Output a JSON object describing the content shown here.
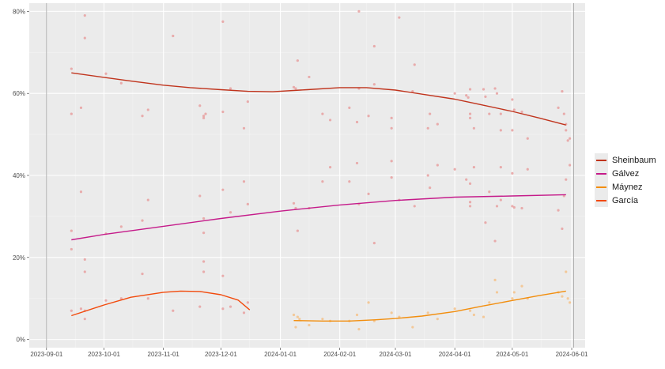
{
  "chart_data": {
    "type": "scatter",
    "title": "",
    "xlabel": "",
    "ylabel": "",
    "x_range": [
      "2023-08-23",
      "2024-06-08"
    ],
    "ylim": [
      -2,
      82
    ],
    "x_ticks": [
      {
        "date": "2023-09-01",
        "label": "2023-09-01"
      },
      {
        "date": "2023-10-01",
        "label": "2023-10-01"
      },
      {
        "date": "2023-11-01",
        "label": "2023-11-01"
      },
      {
        "date": "2023-12-01",
        "label": "2023-12-01"
      },
      {
        "date": "2024-01-01",
        "label": "2024-01-01"
      },
      {
        "date": "2024-02-01",
        "label": "2024-02-01"
      },
      {
        "date": "2024-03-01",
        "label": "2024-03-01"
      },
      {
        "date": "2024-04-01",
        "label": "2024-04-01"
      },
      {
        "date": "2024-05-01",
        "label": "2024-05-01"
      },
      {
        "date": "2024-06-01",
        "label": "2024-06-01"
      }
    ],
    "y_ticks": [
      {
        "value": 0,
        "label": "0%"
      },
      {
        "value": 20,
        "label": "20%"
      },
      {
        "value": 40,
        "label": "40%"
      },
      {
        "value": 60,
        "label": "60%"
      },
      {
        "value": 80,
        "label": "80%"
      }
    ],
    "vertical_reference_lines": [
      "2023-09-01",
      "2024-06-02"
    ],
    "grid": true,
    "legend_position": "right",
    "series": [
      {
        "name": "Sheinbaum",
        "color": "#c0341d",
        "point_color": "#e8a0a0",
        "trend": [
          [
            "2023-09-14",
            65.0
          ],
          [
            "2023-10-01",
            63.9
          ],
          [
            "2023-10-15",
            63.0
          ],
          [
            "2023-11-01",
            62.0
          ],
          [
            "2023-11-15",
            61.4
          ],
          [
            "2023-12-01",
            60.9
          ],
          [
            "2023-12-15",
            60.5
          ],
          [
            "2023-12-28",
            60.4
          ],
          [
            "2024-01-15",
            60.9
          ],
          [
            "2024-02-01",
            61.4
          ],
          [
            "2024-02-15",
            61.4
          ],
          [
            "2024-03-01",
            60.8
          ],
          [
            "2024-03-15",
            59.8
          ],
          [
            "2024-04-01",
            58.6
          ],
          [
            "2024-04-15",
            57.2
          ],
          [
            "2024-05-01",
            55.6
          ],
          [
            "2024-05-15",
            54.0
          ],
          [
            "2024-05-29",
            52.3
          ]
        ],
        "points": [
          [
            "2023-09-14",
            66.0
          ],
          [
            "2023-09-14",
            55.0
          ],
          [
            "2023-09-19",
            56.5
          ],
          [
            "2023-09-21",
            79.0
          ],
          [
            "2023-09-21",
            73.5
          ],
          [
            "2023-10-02",
            64.8
          ],
          [
            "2023-10-10",
            62.5
          ],
          [
            "2023-10-21",
            54.5
          ],
          [
            "2023-10-24",
            56.0
          ],
          [
            "2023-11-06",
            74.0
          ],
          [
            "2023-11-20",
            57.0
          ],
          [
            "2023-11-22",
            54.5
          ],
          [
            "2023-11-22",
            54.0
          ],
          [
            "2023-11-23",
            55.0
          ],
          [
            "2023-12-02",
            77.5
          ],
          [
            "2023-12-02",
            55.5
          ],
          [
            "2023-12-06",
            61.2
          ],
          [
            "2023-12-13",
            51.5
          ],
          [
            "2023-12-15",
            58.0
          ],
          [
            "2024-01-08",
            61.5
          ],
          [
            "2024-01-09",
            61.2
          ],
          [
            "2024-01-10",
            68.0
          ],
          [
            "2024-01-16",
            64.0
          ],
          [
            "2024-01-23",
            55.0
          ],
          [
            "2024-01-27",
            53.5
          ],
          [
            "2024-02-06",
            56.5
          ],
          [
            "2024-02-10",
            53.0
          ],
          [
            "2024-02-11",
            80.0
          ],
          [
            "2024-02-11",
            61.2
          ],
          [
            "2024-02-16",
            54.5
          ],
          [
            "2024-02-19",
            71.5
          ],
          [
            "2024-02-19",
            62.2
          ],
          [
            "2024-02-28",
            54.0
          ],
          [
            "2024-02-28",
            51.5
          ],
          [
            "2024-03-03",
            78.5
          ],
          [
            "2024-03-10",
            60.5
          ],
          [
            "2024-03-11",
            67.0
          ],
          [
            "2024-03-18",
            51.5
          ],
          [
            "2024-03-19",
            55.0
          ],
          [
            "2024-03-23",
            52.5
          ],
          [
            "2024-04-01",
            60.0
          ],
          [
            "2024-04-07",
            59.5
          ],
          [
            "2024-04-08",
            59.0
          ],
          [
            "2024-04-09",
            61.0
          ],
          [
            "2024-04-09",
            55.0
          ],
          [
            "2024-04-09",
            54.0
          ],
          [
            "2024-04-11",
            51.5
          ],
          [
            "2024-04-16",
            61.0
          ],
          [
            "2024-04-17",
            59.2
          ],
          [
            "2024-04-19",
            55.0
          ],
          [
            "2024-04-22",
            61.2
          ],
          [
            "2024-04-23",
            60.0
          ],
          [
            "2024-04-25",
            51.0
          ],
          [
            "2024-04-25",
            55.0
          ],
          [
            "2024-05-01",
            58.5
          ],
          [
            "2024-05-01",
            51.0
          ],
          [
            "2024-05-02",
            56.0
          ],
          [
            "2024-05-06",
            55.5
          ],
          [
            "2024-05-09",
            49.0
          ],
          [
            "2024-05-25",
            56.5
          ],
          [
            "2024-05-27",
            60.5
          ],
          [
            "2024-05-28",
            55.0
          ],
          [
            "2024-05-29",
            52.5
          ],
          [
            "2024-05-29",
            51.0
          ],
          [
            "2024-05-30",
            48.5
          ],
          [
            "2024-05-31",
            49.0
          ]
        ]
      },
      {
        "name": "Gálvez",
        "color": "#c51b8a",
        "point_color": "#e8a0a0",
        "trend": [
          [
            "2023-09-14",
            24.3
          ],
          [
            "2023-10-01",
            25.6
          ],
          [
            "2023-11-01",
            27.6
          ],
          [
            "2023-12-01",
            29.5
          ],
          [
            "2024-01-01",
            31.3
          ],
          [
            "2024-02-01",
            32.8
          ],
          [
            "2024-03-01",
            33.9
          ],
          [
            "2024-04-01",
            34.7
          ],
          [
            "2024-05-01",
            35.0
          ],
          [
            "2024-05-29",
            35.3
          ]
        ],
        "points": [
          [
            "2023-09-14",
            26.5
          ],
          [
            "2023-09-14",
            22.0
          ],
          [
            "2023-09-19",
            36.0
          ],
          [
            "2023-09-21",
            19.5
          ],
          [
            "2023-09-21",
            16.5
          ],
          [
            "2023-10-02",
            25.8
          ],
          [
            "2023-10-10",
            27.5
          ],
          [
            "2023-10-21",
            29.0
          ],
          [
            "2023-10-24",
            34.0
          ],
          [
            "2023-11-20",
            35.0
          ],
          [
            "2023-11-22",
            26.0
          ],
          [
            "2023-11-22",
            29.5
          ],
          [
            "2023-12-02",
            36.5
          ],
          [
            "2023-12-06",
            31.0
          ],
          [
            "2023-12-13",
            38.5
          ],
          [
            "2023-12-15",
            33.0
          ],
          [
            "2024-01-08",
            33.2
          ],
          [
            "2024-01-09",
            32.0
          ],
          [
            "2024-01-10",
            26.5
          ],
          [
            "2024-01-16",
            32.0
          ],
          [
            "2024-01-23",
            38.5
          ],
          [
            "2024-01-27",
            42.0
          ],
          [
            "2024-02-06",
            38.5
          ],
          [
            "2024-02-10",
            43.0
          ],
          [
            "2024-02-11",
            33.0
          ],
          [
            "2024-02-16",
            35.5
          ],
          [
            "2024-02-19",
            23.5
          ],
          [
            "2024-02-28",
            39.5
          ],
          [
            "2024-02-28",
            43.5
          ],
          [
            "2024-03-03",
            34.0
          ],
          [
            "2024-03-11",
            32.5
          ],
          [
            "2024-03-18",
            40.0
          ],
          [
            "2024-03-19",
            37.0
          ],
          [
            "2024-03-23",
            42.5
          ],
          [
            "2024-04-01",
            41.5
          ],
          [
            "2024-04-07",
            39.0
          ],
          [
            "2024-04-09",
            38.0
          ],
          [
            "2024-04-09",
            33.5
          ],
          [
            "2024-04-09",
            32.5
          ],
          [
            "2024-04-11",
            42.0
          ],
          [
            "2024-04-17",
            28.5
          ],
          [
            "2024-04-19",
            36.0
          ],
          [
            "2024-04-22",
            24.0
          ],
          [
            "2024-04-23",
            32.5
          ],
          [
            "2024-04-25",
            42.0
          ],
          [
            "2024-04-25",
            34.0
          ],
          [
            "2024-05-01",
            40.5
          ],
          [
            "2024-05-01",
            32.5
          ],
          [
            "2024-05-02",
            32.2
          ],
          [
            "2024-05-06",
            32.0
          ],
          [
            "2024-05-09",
            41.5
          ],
          [
            "2024-05-25",
            31.5
          ],
          [
            "2024-05-27",
            27.0
          ],
          [
            "2024-05-28",
            35.0
          ],
          [
            "2024-05-29",
            39.0
          ],
          [
            "2024-05-31",
            42.5
          ]
        ]
      },
      {
        "name": "Máynez",
        "color": "#f28e0e",
        "point_color": "#f5c28a",
        "trend": [
          [
            "2024-01-08",
            4.6
          ],
          [
            "2024-01-23",
            4.5
          ],
          [
            "2024-02-06",
            4.5
          ],
          [
            "2024-02-20",
            4.8
          ],
          [
            "2024-03-01",
            5.1
          ],
          [
            "2024-03-15",
            5.7
          ],
          [
            "2024-04-01",
            6.8
          ],
          [
            "2024-04-15",
            8.1
          ],
          [
            "2024-05-01",
            9.5
          ],
          [
            "2024-05-15",
            10.7
          ],
          [
            "2024-05-29",
            11.8
          ]
        ],
        "points": [
          [
            "2024-01-08",
            6.0
          ],
          [
            "2024-01-09",
            3.0
          ],
          [
            "2024-01-10",
            5.5
          ],
          [
            "2024-01-11",
            5.0
          ],
          [
            "2024-01-16",
            3.5
          ],
          [
            "2024-01-23",
            5.0
          ],
          [
            "2024-01-27",
            4.5
          ],
          [
            "2024-02-06",
            4.5
          ],
          [
            "2024-02-10",
            6.0
          ],
          [
            "2024-02-11",
            2.5
          ],
          [
            "2024-02-16",
            9.0
          ],
          [
            "2024-02-19",
            4.5
          ],
          [
            "2024-02-28",
            6.5
          ],
          [
            "2024-03-03",
            5.5
          ],
          [
            "2024-03-10",
            3.0
          ],
          [
            "2024-03-18",
            6.5
          ],
          [
            "2024-03-23",
            5.0
          ],
          [
            "2024-04-01",
            7.5
          ],
          [
            "2024-04-09",
            7.0
          ],
          [
            "2024-04-11",
            6.0
          ],
          [
            "2024-04-16",
            5.5
          ],
          [
            "2024-04-19",
            9.0
          ],
          [
            "2024-04-22",
            14.5
          ],
          [
            "2024-04-23",
            11.5
          ],
          [
            "2024-05-01",
            10.0
          ],
          [
            "2024-05-02",
            11.5
          ],
          [
            "2024-05-06",
            13.0
          ],
          [
            "2024-05-09",
            10.0
          ],
          [
            "2024-05-25",
            11.5
          ],
          [
            "2024-05-27",
            10.5
          ],
          [
            "2024-05-29",
            16.5
          ],
          [
            "2024-05-30",
            10.0
          ],
          [
            "2024-05-31",
            9.0
          ]
        ]
      },
      {
        "name": "García",
        "color": "#f24a0c",
        "point_color": "#e8a0a0",
        "trend": [
          [
            "2023-09-14",
            5.8
          ],
          [
            "2023-10-01",
            8.4
          ],
          [
            "2023-10-15",
            10.3
          ],
          [
            "2023-11-01",
            11.5
          ],
          [
            "2023-11-10",
            11.8
          ],
          [
            "2023-11-20",
            11.7
          ],
          [
            "2023-12-01",
            10.9
          ],
          [
            "2023-12-10",
            9.6
          ],
          [
            "2023-12-16",
            7.2
          ]
        ],
        "points": [
          [
            "2023-09-14",
            7.0
          ],
          [
            "2023-09-19",
            7.5
          ],
          [
            "2023-09-21",
            5.0
          ],
          [
            "2023-09-21",
            7.0
          ],
          [
            "2023-10-02",
            9.5
          ],
          [
            "2023-10-10",
            10.0
          ],
          [
            "2023-10-21",
            16.0
          ],
          [
            "2023-10-24",
            10.0
          ],
          [
            "2023-11-06",
            7.0
          ],
          [
            "2023-11-20",
            8.0
          ],
          [
            "2023-11-22",
            19.0
          ],
          [
            "2023-11-22",
            16.5
          ],
          [
            "2023-12-02",
            15.5
          ],
          [
            "2023-12-02",
            7.5
          ],
          [
            "2023-12-06",
            8.0
          ],
          [
            "2023-12-13",
            6.5
          ],
          [
            "2023-12-15",
            9.0
          ]
        ]
      }
    ]
  }
}
